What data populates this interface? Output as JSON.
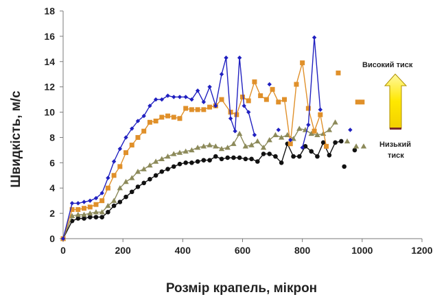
{
  "chart_data": {
    "type": "line",
    "title": "",
    "xlabel": "Розмір крапель, мікрон",
    "ylabel": "Швидкість, м/с",
    "xlim": [
      0,
      1200
    ],
    "ylim": [
      0,
      18
    ],
    "x_ticks": [
      0,
      200,
      400,
      600,
      800,
      1000,
      1200
    ],
    "y_ticks": [
      0,
      2,
      4,
      6,
      8,
      10,
      12,
      14,
      16,
      18
    ],
    "grid": false,
    "legend": "none",
    "annotations": {
      "high": "Високий тиск",
      "low_line1": "Низький",
      "low_line2": "тиск"
    },
    "series": [
      {
        "color": "#2020c0",
        "marker": "diamond",
        "x": [
          0,
          30,
          50,
          70,
          90,
          110,
          130,
          150,
          170,
          190,
          210,
          230,
          250,
          270,
          290,
          310,
          330,
          350,
          370,
          390,
          410,
          430,
          450,
          470,
          490,
          510,
          530,
          545,
          560,
          575,
          590,
          605,
          620,
          640
        ],
        "y": [
          0,
          2.8,
          2.8,
          2.9,
          3.0,
          3.2,
          3.6,
          4.8,
          6.1,
          7.1,
          8.0,
          8.7,
          9.3,
          9.7,
          10.5,
          11.0,
          11.0,
          11.3,
          11.2,
          11.2,
          11.2,
          11.0,
          11.7,
          10.8,
          12.0,
          10.5,
          13.0,
          14.3,
          9.5,
          8.5,
          14.3,
          10.5,
          10.0,
          8.2
        ],
        "markers_only": [
          {
            "x": 690,
            "y": 12.2
          },
          {
            "x": 720,
            "y": 8.6
          },
          {
            "x": 760,
            "y": 7.8
          },
          {
            "x": 960,
            "y": 8.6
          }
        ],
        "tail": {
          "x": [
            800,
            820,
            840,
            860
          ],
          "y": [
            7.2,
            9.0,
            15.9,
            10.2
          ]
        }
      },
      {
        "color": "#e0902a",
        "marker": "square",
        "x": [
          0,
          30,
          50,
          70,
          90,
          110,
          130,
          150,
          170,
          190,
          210,
          230,
          250,
          270,
          290,
          310,
          330,
          350,
          370,
          390,
          410,
          430,
          450,
          470,
          490,
          510,
          530,
          560,
          580,
          600,
          620,
          640,
          660,
          680,
          700,
          720,
          740,
          760,
          780,
          800,
          820,
          840,
          860,
          880
        ],
        "y": [
          0,
          2.3,
          2.3,
          2.4,
          2.5,
          2.7,
          3.0,
          4.0,
          5.0,
          5.7,
          6.8,
          7.4,
          8.0,
          8.5,
          9.2,
          9.3,
          9.6,
          9.7,
          9.6,
          9.5,
          10.3,
          10.2,
          10.2,
          10.2,
          10.4,
          10.5,
          11.0,
          10.0,
          9.8,
          11.2,
          10.9,
          12.4,
          11.3,
          11.0,
          11.8,
          10.8,
          11.0,
          7.5,
          12.2,
          13.9,
          10.3,
          8.5,
          9.8,
          7.3
        ],
        "markers_only": [
          {
            "x": 920,
            "y": 13.1
          },
          {
            "x": 985,
            "y": 10.8
          },
          {
            "x": 1000,
            "y": 10.8
          }
        ]
      },
      {
        "color": "#8c8a5a",
        "marker": "triangle",
        "x": [
          0,
          30,
          50,
          70,
          90,
          110,
          130,
          150,
          170,
          190,
          210,
          230,
          250,
          270,
          290,
          310,
          330,
          350,
          370,
          390,
          410,
          430,
          450,
          470,
          490,
          510,
          530,
          550,
          570,
          590,
          610,
          630,
          650,
          670,
          690,
          710,
          730,
          750,
          770,
          790,
          810,
          830,
          850,
          870,
          890,
          910
        ],
        "y": [
          0,
          1.8,
          1.9,
          1.9,
          2.0,
          2.1,
          2.1,
          2.6,
          3.0,
          4.0,
          4.5,
          4.8,
          5.3,
          5.5,
          5.8,
          6.1,
          6.3,
          6.5,
          6.7,
          6.8,
          6.9,
          7.0,
          7.2,
          7.3,
          7.4,
          7.3,
          7.1,
          7.2,
          7.5,
          8.3,
          7.3,
          7.4,
          7.7,
          7.2,
          7.8,
          8.2,
          8.0,
          8.2,
          7.9,
          8.7,
          8.6,
          8.3,
          8.2,
          8.3,
          8.6,
          9.2
        ],
        "markers_only": [
          {
            "x": 950,
            "y": 7.7
          },
          {
            "x": 980,
            "y": 7.3
          },
          {
            "x": 1005,
            "y": 7.3
          }
        ]
      },
      {
        "color": "#111111",
        "marker": "circle",
        "x": [
          0,
          30,
          50,
          70,
          90,
          110,
          130,
          150,
          170,
          190,
          210,
          230,
          250,
          270,
          290,
          310,
          330,
          350,
          370,
          390,
          410,
          430,
          450,
          470,
          490,
          510,
          530,
          550,
          570,
          590,
          610,
          630,
          650,
          670,
          690,
          710,
          730,
          750,
          770,
          790,
          810,
          830,
          850,
          870,
          890,
          910,
          930
        ],
        "y": [
          0,
          1.4,
          1.6,
          1.6,
          1.7,
          1.7,
          1.7,
          2.1,
          2.6,
          2.9,
          3.3,
          3.7,
          4.1,
          4.4,
          4.7,
          5.0,
          5.3,
          5.5,
          5.7,
          5.9,
          6.0,
          6.0,
          6.1,
          6.2,
          6.2,
          6.5,
          6.3,
          6.4,
          6.4,
          6.4,
          6.3,
          6.3,
          6.1,
          6.7,
          6.7,
          6.5,
          6.0,
          7.5,
          6.5,
          6.5,
          7.3,
          6.9,
          6.5,
          7.6,
          6.6,
          7.6,
          7.7
        ],
        "markers_only": [
          {
            "x": 940,
            "y": 5.7
          },
          {
            "x": 975,
            "y": 7.0
          }
        ]
      }
    ]
  }
}
